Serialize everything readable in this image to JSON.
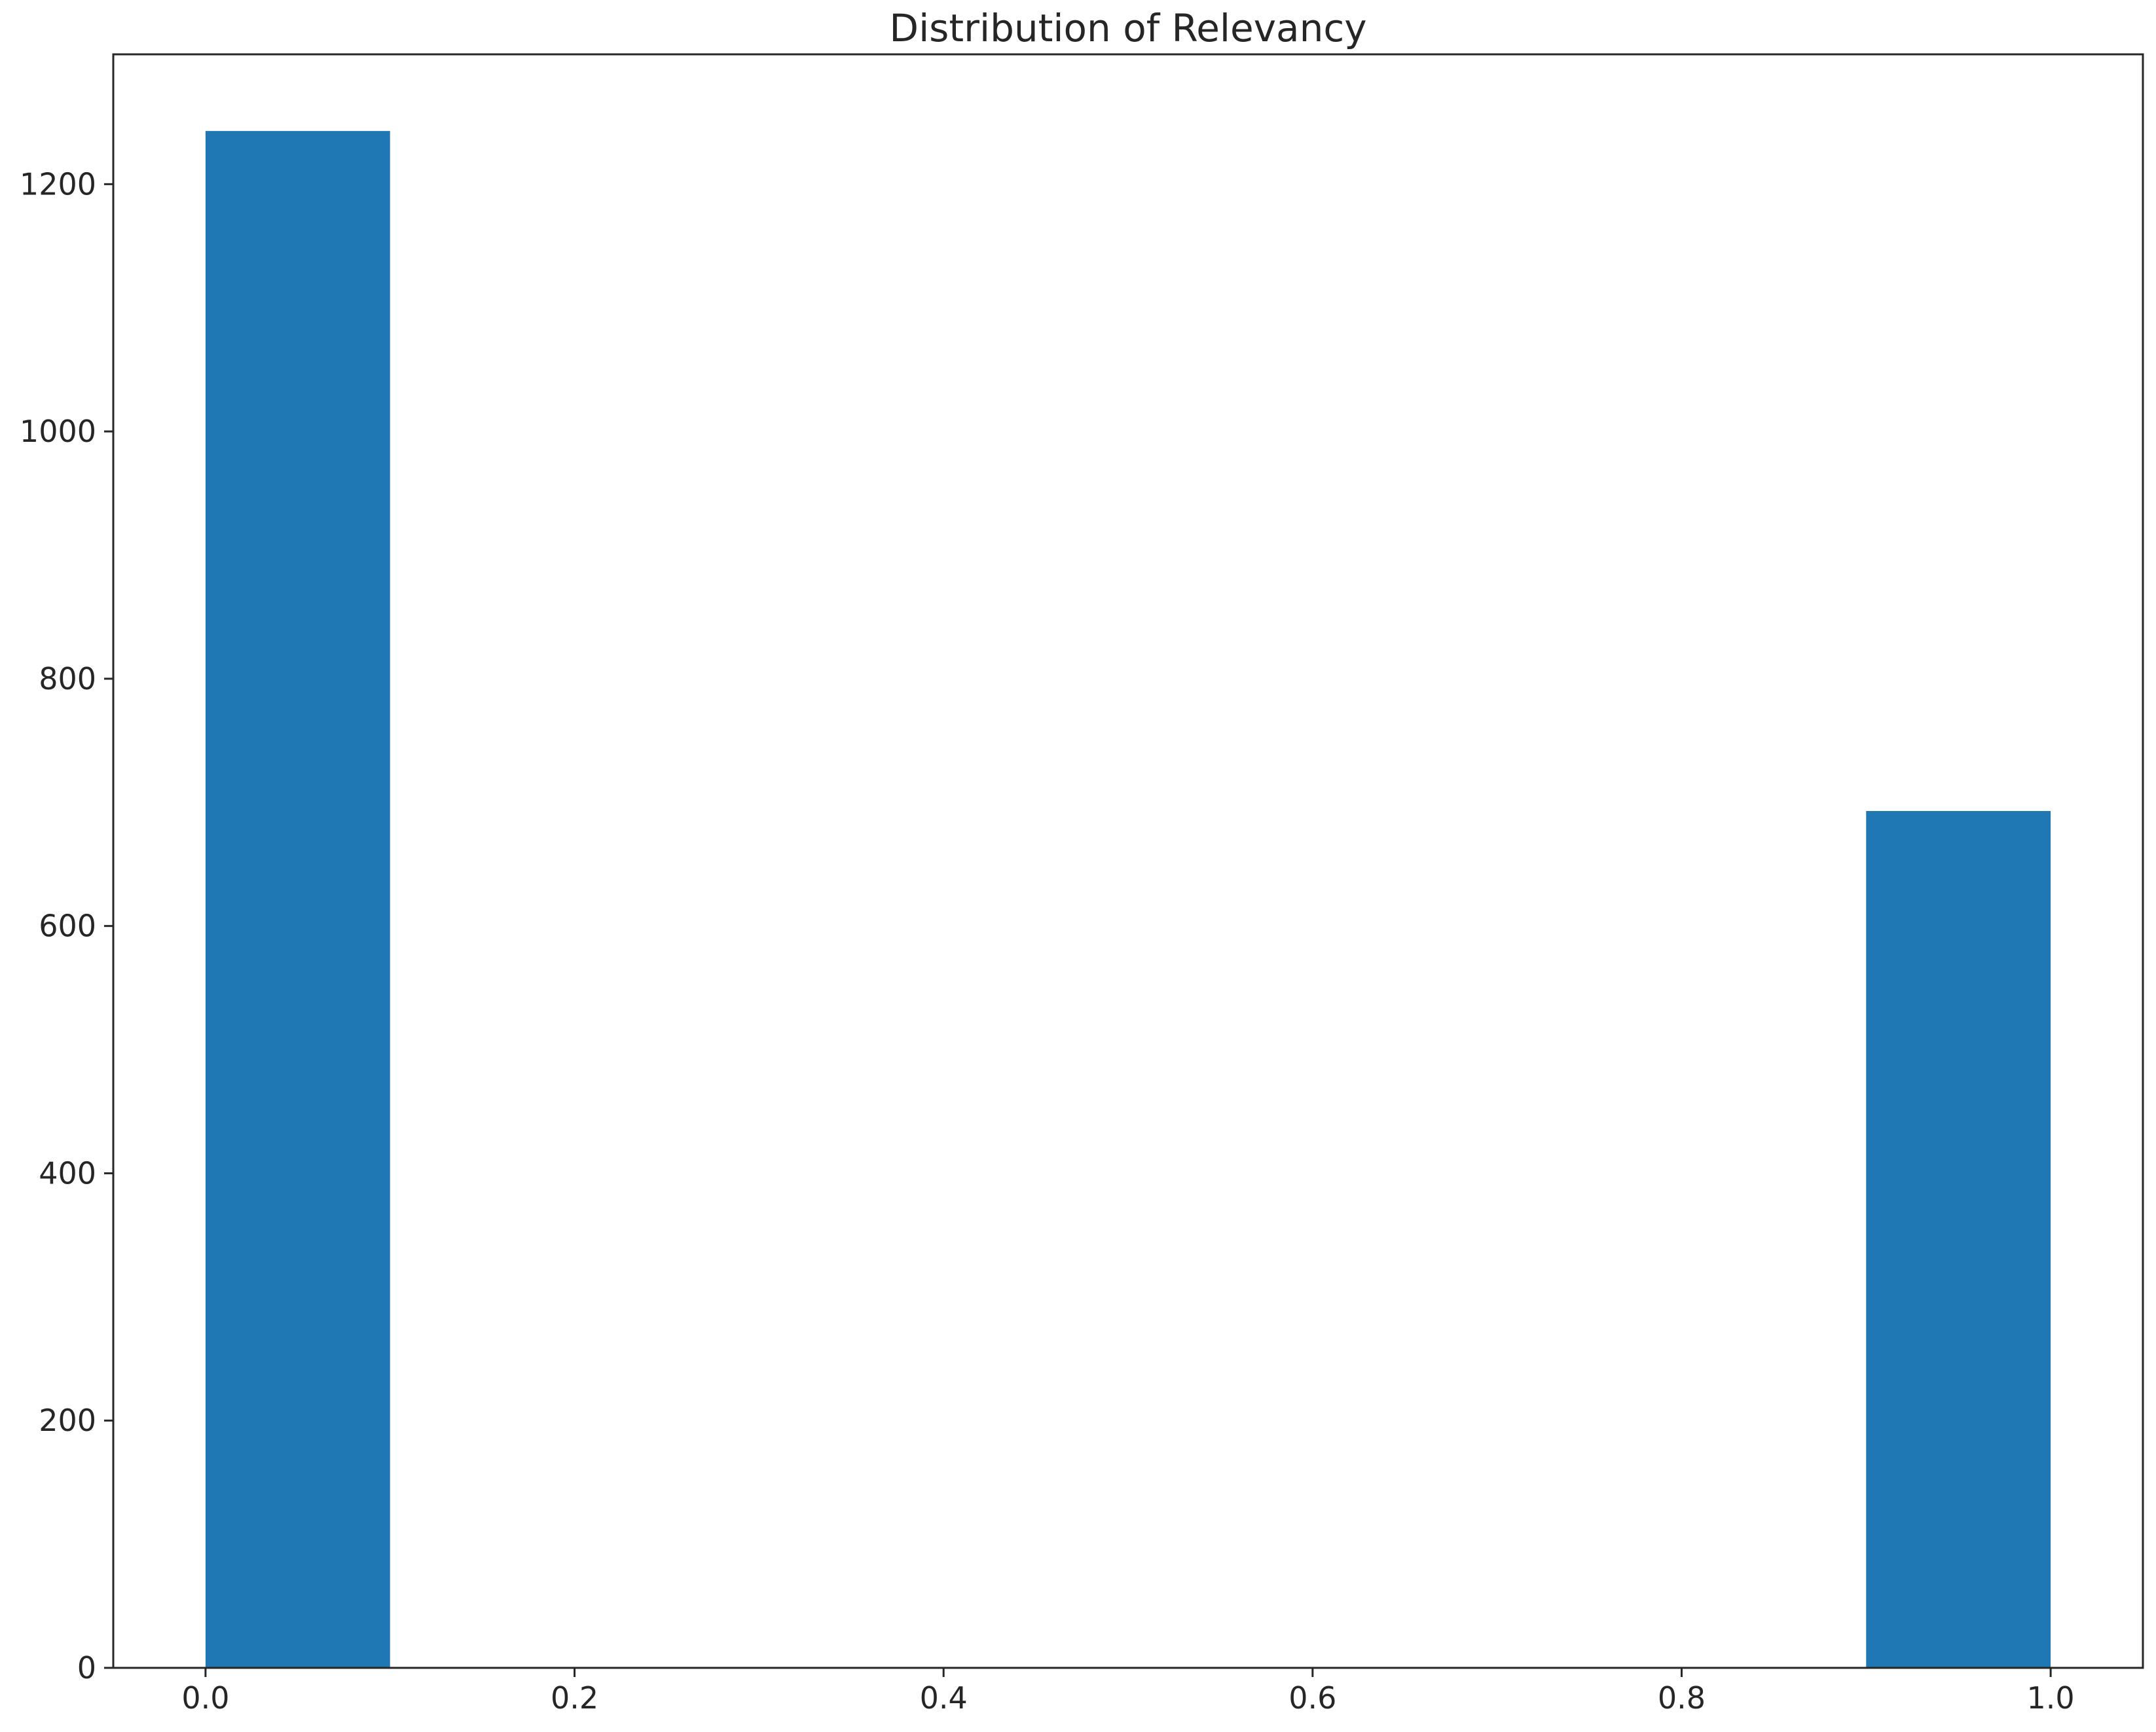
{
  "chart_data": {
    "type": "bar",
    "title": "Distribution of Relevancy",
    "xlabel": "",
    "ylabel": "",
    "bins": [
      {
        "x_start": 0.0,
        "x_end": 0.1,
        "count": 1243
      },
      {
        "x_start": 0.1,
        "x_end": 0.2,
        "count": 0
      },
      {
        "x_start": 0.2,
        "x_end": 0.3,
        "count": 0
      },
      {
        "x_start": 0.3,
        "x_end": 0.4,
        "count": 0
      },
      {
        "x_start": 0.4,
        "x_end": 0.5,
        "count": 0
      },
      {
        "x_start": 0.5,
        "x_end": 0.6,
        "count": 0
      },
      {
        "x_start": 0.6,
        "x_end": 0.7,
        "count": 0
      },
      {
        "x_start": 0.7,
        "x_end": 0.8,
        "count": 0
      },
      {
        "x_start": 0.8,
        "x_end": 0.9,
        "count": 0
      },
      {
        "x_start": 0.9,
        "x_end": 1.0,
        "count": 693
      }
    ],
    "xlim": [
      -0.05,
      1.05
    ],
    "ylim": [
      0,
      1305
    ],
    "x_ticks": [
      "0.0",
      "0.2",
      "0.4",
      "0.6",
      "0.8",
      "1.0"
    ],
    "y_ticks": [
      "0",
      "200",
      "400",
      "600",
      "800",
      "1000",
      "1200"
    ],
    "bar_color": "#1f77b4",
    "grid": false,
    "legend": "none"
  }
}
